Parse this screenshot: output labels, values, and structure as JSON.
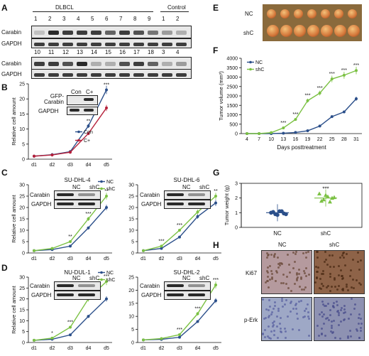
{
  "panels": {
    "A": "A",
    "B": "B",
    "C": "C",
    "D": "D",
    "E": "E",
    "F": "F",
    "G": "G",
    "H": "H"
  },
  "panelA": {
    "group_dlbcl": "DLBCL",
    "group_control": "Control",
    "row1_lanes": [
      "1",
      "2",
      "3",
      "4",
      "5",
      "6",
      "7",
      "8",
      "9",
      "1",
      "2"
    ],
    "row2_lanes": [
      "10",
      "11",
      "12",
      "13",
      "14",
      "15",
      "16",
      "17",
      "18",
      "3",
      "4"
    ],
    "carabin": "Carabin",
    "gapdh": "GAPDH"
  },
  "panelB": {
    "inset_con": "Con",
    "inset_cplus": "C+",
    "inset_row1": "GFP-\nCarabin",
    "inset_row2": "GAPDH",
    "ylabel": "Relative cell amount"
  },
  "panelC": {
    "title1": "SU-DHL-4",
    "title2": "SU-DHL-6",
    "inset_nc": "NC",
    "inset_shc": "shC",
    "carabin": "Carabin",
    "gapdh": "GAPDH"
  },
  "panelD": {
    "title1": "NU-DUL-1",
    "title2": "SU-DHL-2",
    "inset_nc": "NC",
    "inset_shc": "shC",
    "carabin": "Carabin",
    "gapdh": "GAPDH"
  },
  "panelE": {
    "row1": "NC",
    "row2": "shC"
  },
  "panelH": {
    "col1": "NC",
    "col2": "shC",
    "row1": "Ki67",
    "row2": "p-Erk"
  },
  "chart_data": [
    {
      "id": "B",
      "type": "line",
      "categories": [
        "d1",
        "d2",
        "d3",
        "d4",
        "d5"
      ],
      "ylim": [
        0,
        25
      ],
      "yticks": [
        0,
        5,
        10,
        15,
        20,
        25
      ],
      "ylabel": "Relative cell amount",
      "series": [
        {
          "name": "Con",
          "color": "#2b4f8a",
          "values": [
            1,
            1.5,
            2.5,
            11,
            23
          ]
        },
        {
          "name": "C+",
          "color": "#b5203a",
          "values": [
            1,
            1.4,
            2.3,
            8.5,
            17
          ]
        }
      ],
      "sig": [
        "",
        "",
        "",
        "**",
        "***"
      ]
    },
    {
      "id": "C1",
      "type": "line",
      "title": "SU-DHL-4",
      "categories": [
        "d1",
        "d2",
        "d3",
        "d4",
        "d5"
      ],
      "ylim": [
        0,
        30
      ],
      "yticks": [
        0,
        5,
        10,
        15,
        20,
        25,
        30
      ],
      "ylabel": "Relative cell amount",
      "series": [
        {
          "name": "NC",
          "color": "#2b4f8a",
          "values": [
            1,
            1.5,
            3,
            11,
            20
          ]
        },
        {
          "name": "shC",
          "color": "#7bc143",
          "values": [
            1,
            2,
            5,
            15,
            25
          ]
        }
      ],
      "sig": [
        "",
        "",
        "**",
        "***",
        "**"
      ]
    },
    {
      "id": "C2",
      "type": "line",
      "title": "SU-DHL-6",
      "categories": [
        "d1",
        "d2",
        "d3",
        "d4",
        "d5"
      ],
      "ylim": [
        0,
        30
      ],
      "yticks": [
        0,
        5,
        10,
        15,
        20,
        25,
        30
      ],
      "series": [
        {
          "name": "NC",
          "color": "#2b4f8a",
          "values": [
            1,
            2,
            7,
            16,
            22
          ]
        },
        {
          "name": "shC",
          "color": "#7bc143",
          "values": [
            1,
            3,
            10,
            18,
            25
          ]
        }
      ],
      "sig": [
        "",
        "***",
        "***",
        "***",
        "**"
      ]
    },
    {
      "id": "D1",
      "type": "line",
      "title": "NU-DUL-1",
      "categories": [
        "d1",
        "d2",
        "d3",
        "d4",
        "d5"
      ],
      "ylim": [
        0,
        30
      ],
      "yticks": [
        0,
        5,
        10,
        15,
        20,
        25,
        30
      ],
      "ylabel": "Relative cell amount",
      "series": [
        {
          "name": "NC",
          "color": "#2b4f8a",
          "values": [
            1,
            1.5,
            3.5,
            12,
            20
          ]
        },
        {
          "name": "shC",
          "color": "#7bc143",
          "values": [
            1,
            2,
            7,
            20,
            28
          ]
        }
      ],
      "sig": [
        "",
        "*",
        "***",
        "***",
        "***"
      ]
    },
    {
      "id": "D2",
      "type": "line",
      "title": "SU-DHL-2",
      "categories": [
        "d1",
        "d2",
        "d3",
        "d4",
        "d5"
      ],
      "ylim": [
        0,
        25
      ],
      "yticks": [
        0,
        5,
        10,
        15,
        20,
        25
      ],
      "series": [
        {
          "name": "NC",
          "color": "#2b4f8a",
          "values": [
            1,
            1.2,
            2,
            8,
            16
          ]
        },
        {
          "name": "shC",
          "color": "#7bc143",
          "values": [
            1,
            1.5,
            3,
            11,
            22
          ]
        }
      ],
      "sig": [
        "",
        "",
        "***",
        "***",
        "***"
      ]
    },
    {
      "id": "F",
      "type": "line",
      "categories": [
        "4",
        "7",
        "10",
        "13",
        "16",
        "19",
        "22",
        "25",
        "28",
        "31"
      ],
      "ylim": [
        0,
        4000
      ],
      "yticks": [
        0,
        500,
        1000,
        1500,
        2000,
        2500,
        3000,
        3500,
        4000
      ],
      "xlabel": "Days posttreatment",
      "ylabel": "Tumor volume (mm³)",
      "series": [
        {
          "name": "NC",
          "color": "#2b4f8a",
          "values": [
            0,
            0,
            0,
            20,
            60,
            150,
            400,
            900,
            1150,
            1850
          ]
        },
        {
          "name": "shC",
          "color": "#7bc143",
          "values": [
            0,
            0,
            50,
            300,
            750,
            1750,
            2150,
            2900,
            3100,
            3350
          ]
        }
      ],
      "sig": [
        "",
        "",
        "",
        "***",
        "***",
        "***",
        "***",
        "***",
        "***",
        "***"
      ]
    },
    {
      "id": "G",
      "type": "scatter",
      "categories": [
        "NC",
        "shC"
      ],
      "ylim": [
        0,
        3
      ],
      "yticks": [
        0,
        1,
        2,
        3
      ],
      "ylabel": "Tumor weight (g)",
      "series": [
        {
          "name": "NC",
          "color": "#2b4f8a",
          "values": [
            1.0,
            0.9,
            1.1,
            0.95,
            1.05,
            0.85,
            1.1,
            0.9
          ]
        },
        {
          "name": "shC",
          "color": "#7bc143",
          "values": [
            2.3,
            1.9,
            2.1,
            2.0,
            1.8,
            2.2,
            1.75,
            2.05
          ]
        }
      ],
      "means": [
        1.0,
        2.0
      ],
      "sig": "***"
    }
  ]
}
